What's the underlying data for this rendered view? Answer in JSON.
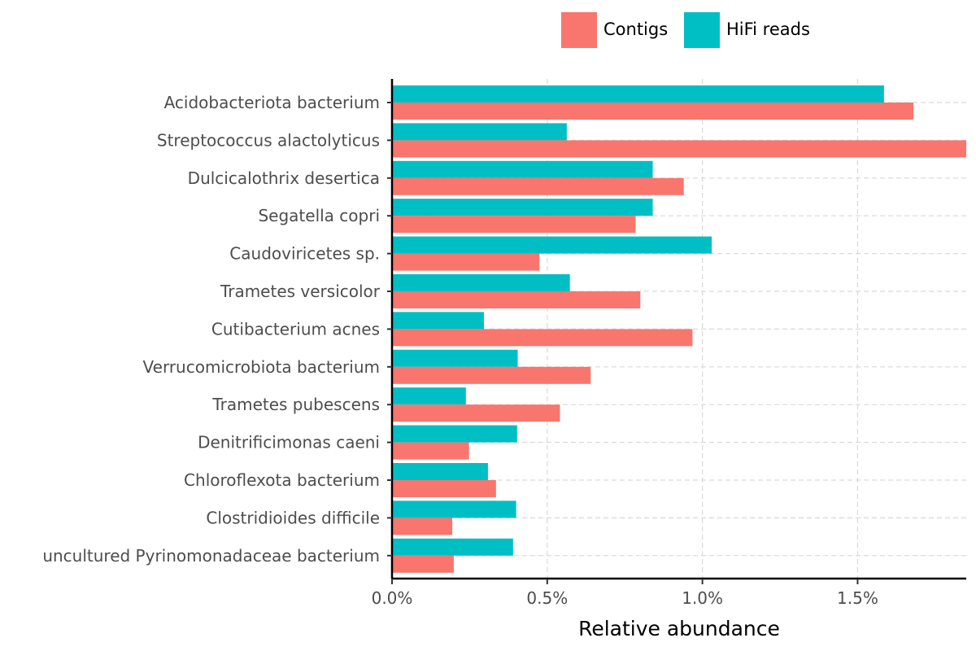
{
  "chart_data": {
    "type": "bar",
    "orientation": "horizontal",
    "title": "",
    "xlabel": "Relative abundance",
    "ylabel": "",
    "xlim": [
      0,
      1.85
    ],
    "x_ticks": [
      0,
      0.5,
      1.0,
      1.5
    ],
    "x_tick_labels": [
      "0.0%",
      "0.5%",
      "1.0%",
      "1.5%"
    ],
    "grid": true,
    "legend_position": "top",
    "categories": [
      "Acidobacteriota bacterium",
      "Streptococcus alactolyticus",
      "Dulcicalothrix desertica",
      "Segatella copri",
      "Caudoviricetes sp.",
      "Trametes versicolor",
      "Cutibacterium acnes",
      "Verrucomicrobiota bacterium",
      "Trametes pubescens",
      "Denitrificimonas caeni",
      "Chloroflexota bacterium",
      "Clostridioides difficile",
      "uncultured Pyrinomonadaceae bacterium"
    ],
    "series": [
      {
        "name": "Contigs",
        "color": "#F8766D",
        "values": [
          1.68,
          1.85,
          0.94,
          0.785,
          0.475,
          0.8,
          0.968,
          0.64,
          0.541,
          0.248,
          0.335,
          0.194,
          0.199
        ]
      },
      {
        "name": "HiFi reads",
        "color": "#00BFC4",
        "values": [
          1.585,
          0.563,
          0.84,
          0.84,
          1.03,
          0.573,
          0.296,
          0.405,
          0.238,
          0.403,
          0.309,
          0.4,
          0.39
        ]
      }
    ],
    "unit": "%"
  }
}
